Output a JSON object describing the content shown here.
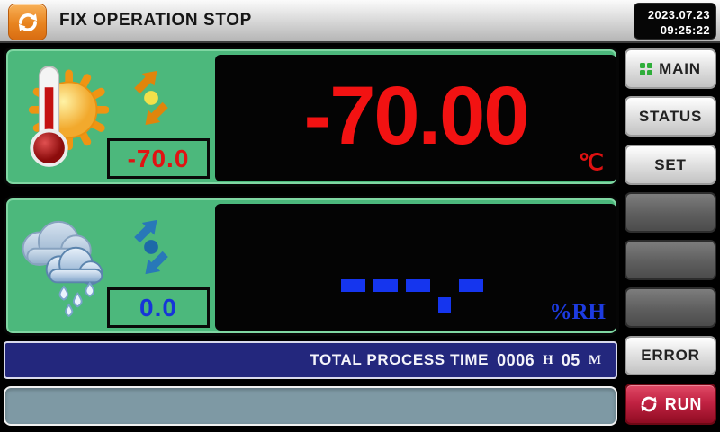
{
  "header": {
    "title": "FIX OPERATION STOP",
    "date": "2023.07.23",
    "time": "09:25:22",
    "app_icon": "sync-arrows"
  },
  "temperature_panel": {
    "icon": "thermometer-sun",
    "trend_icon": "up-down-arrows",
    "setpoint": "-70.0",
    "process_value": "-70.00",
    "unit": "℃",
    "value_color": "#f21212"
  },
  "humidity_panel": {
    "icon": "rain-cloud",
    "trend_icon": "up-down-arrows",
    "setpoint": "0.0",
    "process_value": "---.-",
    "display_segments": [
      "dash",
      "dash",
      "dash",
      "dot",
      "dash"
    ],
    "unit": "%RH",
    "value_color": "#1d3be0"
  },
  "process_time_bar": {
    "label": "TOTAL PROCESS TIME",
    "hours": "0006",
    "hours_unit": "H",
    "minutes": "05",
    "minutes_unit": "M"
  },
  "message_bar": {
    "text": ""
  },
  "sidebar": {
    "buttons": [
      {
        "label": "MAIN",
        "icon": "grid-dots"
      },
      {
        "label": "STATUS"
      },
      {
        "label": "SET"
      },
      {
        "label": ""
      },
      {
        "label": ""
      },
      {
        "label": ""
      },
      {
        "label": "ERROR"
      },
      {
        "label": "RUN",
        "icon": "sync-arrows"
      }
    ]
  },
  "colors": {
    "panel_green": "#4cb87c",
    "display_black": "#040404",
    "temp_red": "#f21212",
    "humidity_blue": "#1d3be0",
    "navy_bar": "#23277d",
    "status_slate": "#7e99a4",
    "run_red": "#b01030",
    "header_orange": "#e8841f"
  }
}
